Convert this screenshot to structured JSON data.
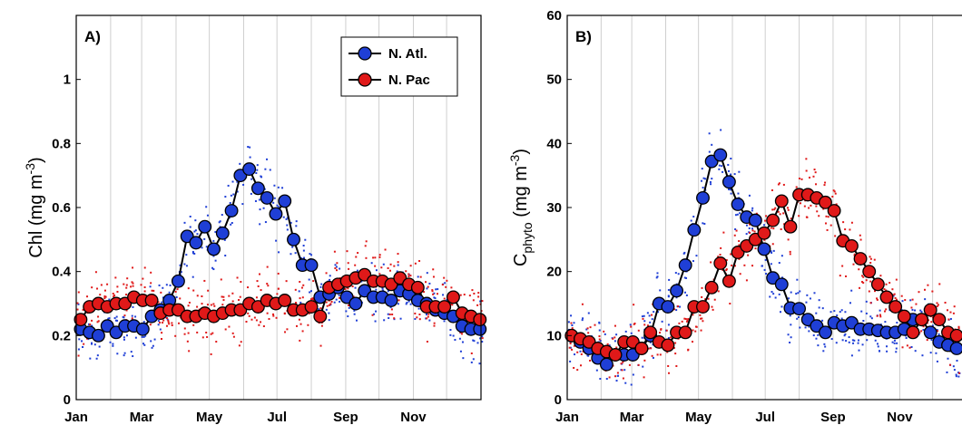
{
  "colors": {
    "n_atl": "#1f3fd6",
    "n_pac": "#e01919",
    "line": "#000000",
    "grid": "#cfcfcf"
  },
  "chart_data": [
    {
      "type": "line",
      "panel_label": "A)",
      "ylabel": "Chl (mg m",
      "ylabel_sup": "-3",
      "ylabel_close": ")",
      "x_tick_labels": [
        "Jan",
        "Mar",
        "May",
        "Jul",
        "Sep",
        "Nov"
      ],
      "y_ticks": [
        0,
        0.2,
        0.4,
        0.6,
        0.8,
        1
      ],
      "y_tick_labels": [
        "0",
        "0.2",
        "0.4",
        "0.6",
        "0.8",
        "1"
      ],
      "ylim": [
        0,
        1.2
      ],
      "xlim_days": [
        0,
        365
      ],
      "grid": "vertical",
      "legend_position": "top-right",
      "series": [
        {
          "name": "N. Atl.",
          "x": [
            4,
            12,
            20,
            28,
            36,
            44,
            52,
            60,
            68,
            76,
            84,
            92,
            100,
            108,
            116,
            124,
            132,
            140,
            148,
            156,
            164,
            172,
            180,
            188,
            196,
            204,
            212,
            220,
            228,
            236,
            244,
            252,
            260,
            268,
            276,
            284,
            292,
            300,
            308,
            316,
            324,
            332,
            340,
            348,
            356,
            364
          ],
          "y": [
            0.22,
            0.21,
            0.2,
            0.23,
            0.21,
            0.23,
            0.23,
            0.22,
            0.26,
            0.28,
            0.31,
            0.37,
            0.51,
            0.49,
            0.54,
            0.47,
            0.52,
            0.59,
            0.7,
            0.72,
            0.66,
            0.63,
            0.58,
            0.62,
            0.5,
            0.42,
            0.42,
            0.32,
            0.33,
            0.35,
            0.32,
            0.3,
            0.34,
            0.32,
            0.32,
            0.31,
            0.34,
            0.33,
            0.31,
            0.3,
            0.28,
            0.27,
            0.26,
            0.23,
            0.22,
            0.22
          ]
        },
        {
          "name": "N. Pac",
          "x": [
            4,
            12,
            20,
            28,
            36,
            44,
            52,
            60,
            68,
            76,
            84,
            92,
            100,
            108,
            116,
            124,
            132,
            140,
            148,
            156,
            164,
            172,
            180,
            188,
            196,
            204,
            212,
            220,
            228,
            236,
            244,
            252,
            260,
            268,
            276,
            284,
            292,
            300,
            308,
            316,
            324,
            332,
            340,
            348,
            356,
            364
          ],
          "y": [
            0.25,
            0.29,
            0.3,
            0.29,
            0.3,
            0.3,
            0.32,
            0.31,
            0.31,
            0.27,
            0.28,
            0.28,
            0.26,
            0.26,
            0.27,
            0.26,
            0.27,
            0.28,
            0.28,
            0.3,
            0.29,
            0.31,
            0.3,
            0.31,
            0.28,
            0.28,
            0.29,
            0.26,
            0.35,
            0.36,
            0.37,
            0.38,
            0.39,
            0.37,
            0.37,
            0.36,
            0.38,
            0.36,
            0.35,
            0.29,
            0.29,
            0.29,
            0.32,
            0.27,
            0.26,
            0.25
          ]
        }
      ]
    },
    {
      "type": "line",
      "panel_label": "B)",
      "ylabel": "C",
      "ylabel_sub": "phyto",
      "ylabel_units": " (mg m",
      "ylabel_sup": "-3",
      "ylabel_close": ")",
      "x_tick_labels": [
        "Jan",
        "Mar",
        "May",
        "Jul",
        "Sep",
        "Nov"
      ],
      "y_ticks": [
        0,
        10,
        20,
        30,
        40,
        50,
        60
      ],
      "y_tick_labels": [
        "0",
        "10",
        "20",
        "30",
        "40",
        "50",
        "60"
      ],
      "ylim": [
        0,
        60
      ],
      "xlim_days": [
        0,
        365
      ],
      "grid": "vertical",
      "series": [
        {
          "name": "N. Atl.",
          "x": [
            4,
            12,
            20,
            28,
            36,
            44,
            52,
            60,
            68,
            76,
            84,
            92,
            100,
            108,
            116,
            124,
            132,
            140,
            148,
            156,
            164,
            172,
            180,
            188,
            196,
            204,
            212,
            220,
            228,
            236,
            244,
            252,
            260,
            268,
            276,
            284,
            292,
            300,
            308,
            316,
            324,
            332,
            340,
            348,
            356
          ],
          "y": [
            10,
            9,
            8,
            6.5,
            5.5,
            7,
            7,
            7,
            8,
            10,
            15,
            14.5,
            17,
            21,
            26.5,
            31.5,
            37.2,
            38.2,
            34,
            30.5,
            28.5,
            28,
            23.5,
            19,
            18,
            14.3,
            14.2,
            12.5,
            11.5,
            10.5,
            12,
            11.5,
            12,
            11,
            11,
            10.8,
            10.5,
            10.5,
            11,
            12.5,
            12.5,
            10.5,
            9,
            8.5,
            8
          ]
        },
        {
          "name": "N. Pac",
          "x": [
            4,
            12,
            20,
            28,
            36,
            44,
            52,
            60,
            68,
            76,
            84,
            92,
            100,
            108,
            116,
            124,
            132,
            140,
            148,
            156,
            164,
            172,
            180,
            188,
            196,
            204,
            212,
            220,
            228,
            236,
            244,
            252,
            260,
            268,
            276,
            284,
            292,
            300,
            308,
            316,
            324,
            332,
            340,
            348,
            356
          ],
          "y": [
            10,
            9.5,
            9,
            8,
            7.5,
            7,
            9,
            9,
            8,
            10.5,
            9,
            8.5,
            10.5,
            10.5,
            14.5,
            14.5,
            17.5,
            21.3,
            18.5,
            23,
            24,
            25,
            26,
            28,
            31,
            27,
            32,
            32,
            31.5,
            30.8,
            29.5,
            24.8,
            24,
            22,
            20,
            18,
            16,
            14.5,
            13,
            10.5,
            12.5,
            14,
            12.5,
            10.5,
            10
          ]
        }
      ]
    }
  ],
  "legend": {
    "items": [
      "N. Atl.",
      "N. Pac"
    ]
  }
}
